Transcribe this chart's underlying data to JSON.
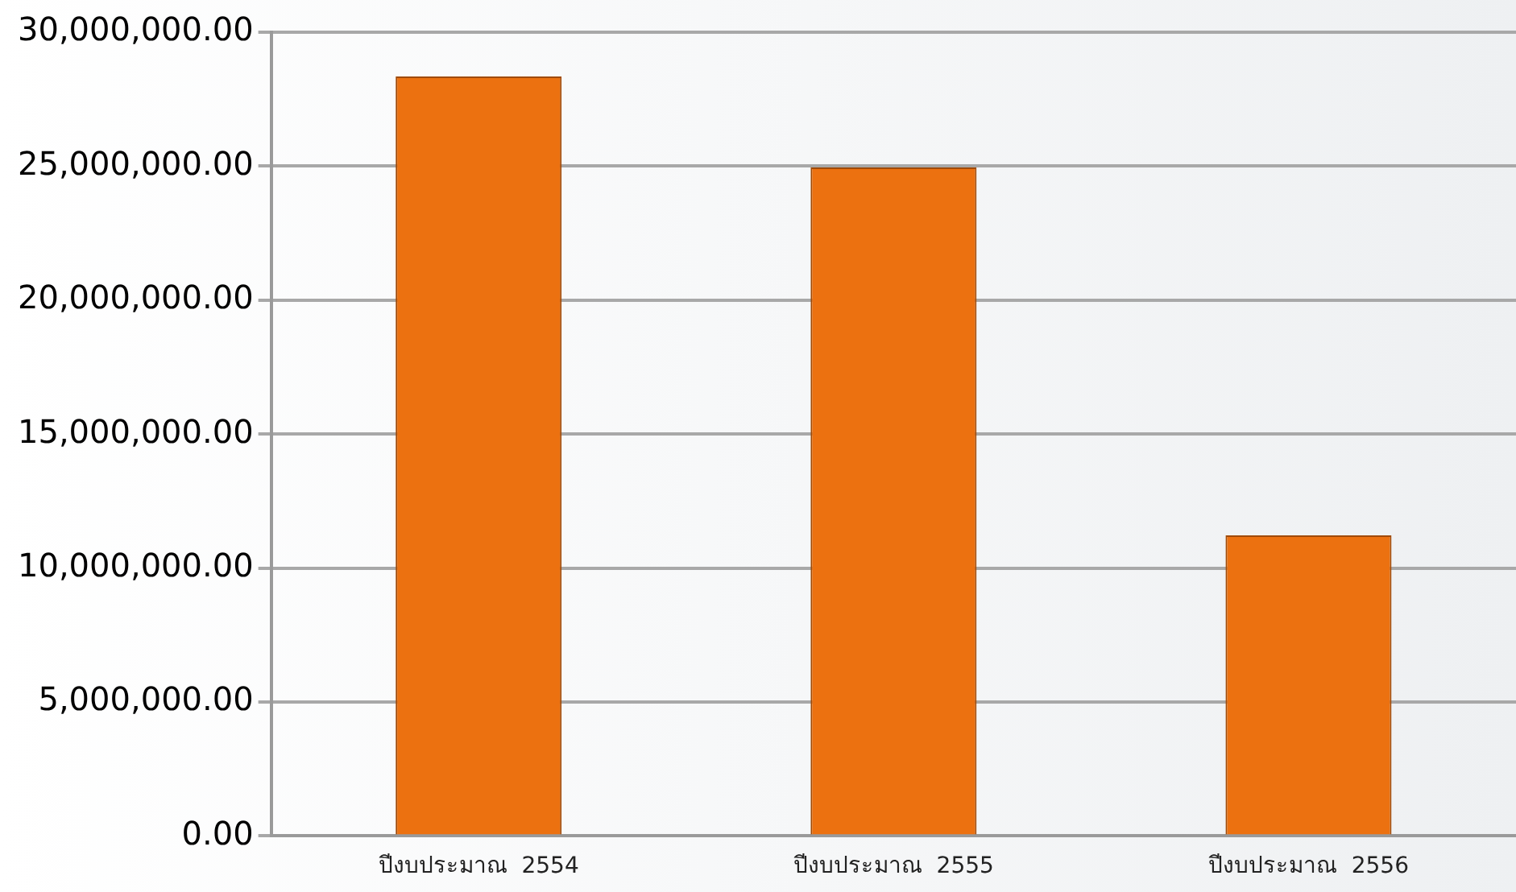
{
  "chart_data": {
    "type": "bar",
    "categories": [
      "ปีงบประมาณ  2554",
      "ปีงบประมาณ  2555",
      "ปีงบประมาณ  2556"
    ],
    "values": [
      28350000,
      24950000,
      11220000
    ],
    "color": "#ec7110",
    "ylim": [
      0,
      30000000
    ],
    "yticks": [
      {
        "value": 0,
        "label": "0.00"
      },
      {
        "value": 5000000,
        "label": "5,000,000.00"
      },
      {
        "value": 10000000,
        "label": "10,000,000.00"
      },
      {
        "value": 15000000,
        "label": "15,000,000.00"
      },
      {
        "value": 20000000,
        "label": "20,000,000.00"
      },
      {
        "value": 25000000,
        "label": "25,000,000.00"
      },
      {
        "value": 30000000,
        "label": "30,000,000.00"
      }
    ],
    "grid": "y",
    "legend": false
  }
}
